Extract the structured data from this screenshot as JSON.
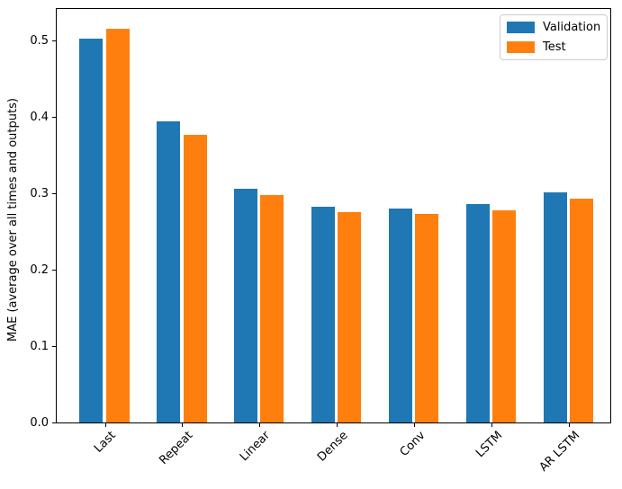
{
  "chart_data": {
    "type": "bar",
    "ylabel": "MAE (average over all times and outputs)",
    "categories": [
      "Last",
      "Repeat",
      "Linear",
      "Dense",
      "Conv",
      "LSTM",
      "AR LSTM"
    ],
    "series": [
      {
        "name": "Validation",
        "color": "#1f77b4",
        "values": [
          0.503,
          0.395,
          0.306,
          0.283,
          0.28,
          0.286,
          0.302
        ]
      },
      {
        "name": "Test",
        "color": "#ff7f0e",
        "values": [
          0.516,
          0.377,
          0.298,
          0.276,
          0.274,
          0.278,
          0.294
        ]
      }
    ],
    "ylim": [
      0,
      0.542
    ],
    "yticks": [
      0.0,
      0.1,
      0.2,
      0.3,
      0.4,
      0.5
    ],
    "xtick_rotation": 45,
    "grid": false,
    "legend_position": "upper right"
  }
}
